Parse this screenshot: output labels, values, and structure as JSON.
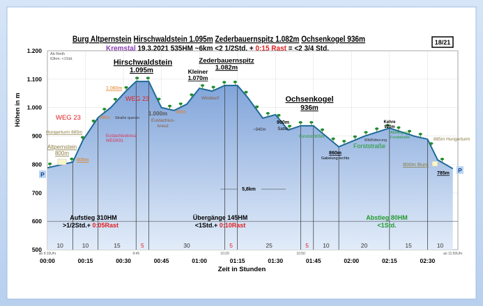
{
  "header": {
    "title_parts": [
      "Burg Altpernstein",
      "Hirschwaldstein 1.095m",
      "Zederbauernspitz 1.082m",
      "Ochsenkogel 936m"
    ],
    "region": "Kremstal",
    "date": "19.3.2021",
    "ascent": "535HM",
    "distance": "~6km",
    "duration": "<2 1/2Std. + ",
    "rest": "0:15 Rast",
    "total": " = <2 3/4 Std.",
    "page_badge": "18/21"
  },
  "colors": {
    "area_top": "#7fa3d9",
    "area_bottom": "#e2ecf9",
    "line": "#1d6a9a",
    "accent_red": "#e02020",
    "accent_green": "#1f9a2a",
    "accent_orange": "#e07a1a",
    "purple": "#8a3fb0"
  },
  "chart_data": {
    "type": "area",
    "xlabel": "Zeit in Stunden",
    "ylabel": "Höhen in m",
    "xlim_minutes": [
      0,
      162
    ],
    "ylim": [
      500,
      1200
    ],
    "grid": true,
    "yticks": [
      500,
      600,
      700,
      800,
      900,
      1000,
      1100,
      1200
    ],
    "ytick_labels": [
      "500",
      "600",
      "700",
      "800",
      "900",
      "1.000",
      "1.100",
      "1.200"
    ],
    "xticks_minutes": [
      0,
      15,
      30,
      45,
      60,
      75,
      90,
      105,
      120,
      135,
      150
    ],
    "xtick_labels": [
      "00:00",
      "00:15",
      "00:30",
      "00:45",
      "01:00",
      "01:15",
      "01:30",
      "01:45",
      "02:00",
      "02:15",
      "02:30"
    ],
    "profile": {
      "x_minutes": [
        0,
        10,
        14,
        20,
        25,
        31,
        35,
        40,
        43,
        45,
        50,
        55,
        60,
        65,
        70,
        75,
        79,
        85,
        90,
        95,
        100,
        105,
        115,
        125,
        135,
        145,
        150,
        154,
        160
      ],
      "y_m": [
        788,
        808,
        885,
        965,
        1000,
        1058,
        1092,
        1092,
        1036,
        1000,
        990,
        1012,
        1068,
        1058,
        1078,
        1078,
        1036,
        963,
        975,
        921,
        936,
        936,
        862,
        899,
        928,
        899,
        889,
        816,
        785
      ]
    },
    "segment_boundaries_minutes": [
      10,
      20,
      35,
      40,
      70,
      75,
      100,
      105,
      115,
      135,
      150
    ],
    "segments": [
      "10",
      "10",
      "15",
      "5",
      "30",
      "5",
      "25",
      "5",
      "10",
      "20",
      "15",
      "10"
    ],
    "segment_rest_flags": [
      false,
      false,
      false,
      true,
      false,
      true,
      false,
      true,
      false,
      false,
      false,
      false
    ],
    "clock_labels": [
      {
        "minute": 0,
        "text": "ab 9:10Uhr"
      },
      {
        "minute": 35,
        "text": "9:45"
      },
      {
        "minute": 70,
        "text": "10:20"
      },
      {
        "minute": 100,
        "text": "10:50"
      },
      {
        "minute": 160,
        "text": "an 11:50Uhr"
      }
    ],
    "annotations": {
      "start_info_1": "Ab Reith",
      "start_info_2": "63km: <1Std.",
      "hirschwaldstein": "Hirschwaldstein",
      "hirschwaldstein_alt": "1.095m",
      "kleiner": "Kleiner",
      "kleiner_alt": "1.070m",
      "zederbauernspitz": "Zederbauernspitz",
      "zederbauernspitz_alt": "1.082m",
      "ochsenkogel": "Ochsenkogel",
      "ochsenkogel_alt": "936m",
      "alt_1060": "1.060m",
      "weg23_a": "WEG 23",
      "weg23_b": "WEG 23",
      "eustachius_alt": "1.000m",
      "eustachius_1": "Eustachius-",
      "eustachius_2": "kreuz",
      "alt_990": "990m",
      "windwurf": "Windwurf",
      "alt_995": "995m",
      "strasse_queren": "Straße queren",
      "hungerturm_left": "Hungerturm 885m",
      "eustachiuskreuz_1": "Eustachiuskreuz",
      "eustachiuskreuz_2": "WEGK91",
      "altpernstein": "Altpernstein",
      "altpernstein_alt": "800m",
      "alt_805": "805m",
      "alt_940": "~940m",
      "sattel_alt": "900m",
      "sattel": "Sattel",
      "forststr_905": "Forststr.905m",
      "gabelung_alt": "860m",
      "gabelung": "Gabelung rechts",
      "forststrasse": "Forststraße",
      "wildfuetterung": "Wildfütterung",
      "kehre": "Kehre",
      "kehre_alt": "920m",
      "abstieg_zur_1": "Abstieg zur",
      "abstieg_zur_2": "Forststraße",
      "hungerturm_right": "885m Hungerturm",
      "burg_800": "800m Burg",
      "end_alt": "785m",
      "parking": "P",
      "distance_mid": "5,8km"
    },
    "sections": [
      {
        "title": "Aufstieg 310HM",
        "time": ">1/2Std.+ ",
        "rest": "0:05Rast"
      },
      {
        "title": "Übergänge 145HM",
        "time": "<1Std.+ ",
        "rest": "0:10Rast"
      },
      {
        "title": "Abstieg 80HM",
        "time": "<1Std.",
        "rest": ""
      }
    ]
  }
}
